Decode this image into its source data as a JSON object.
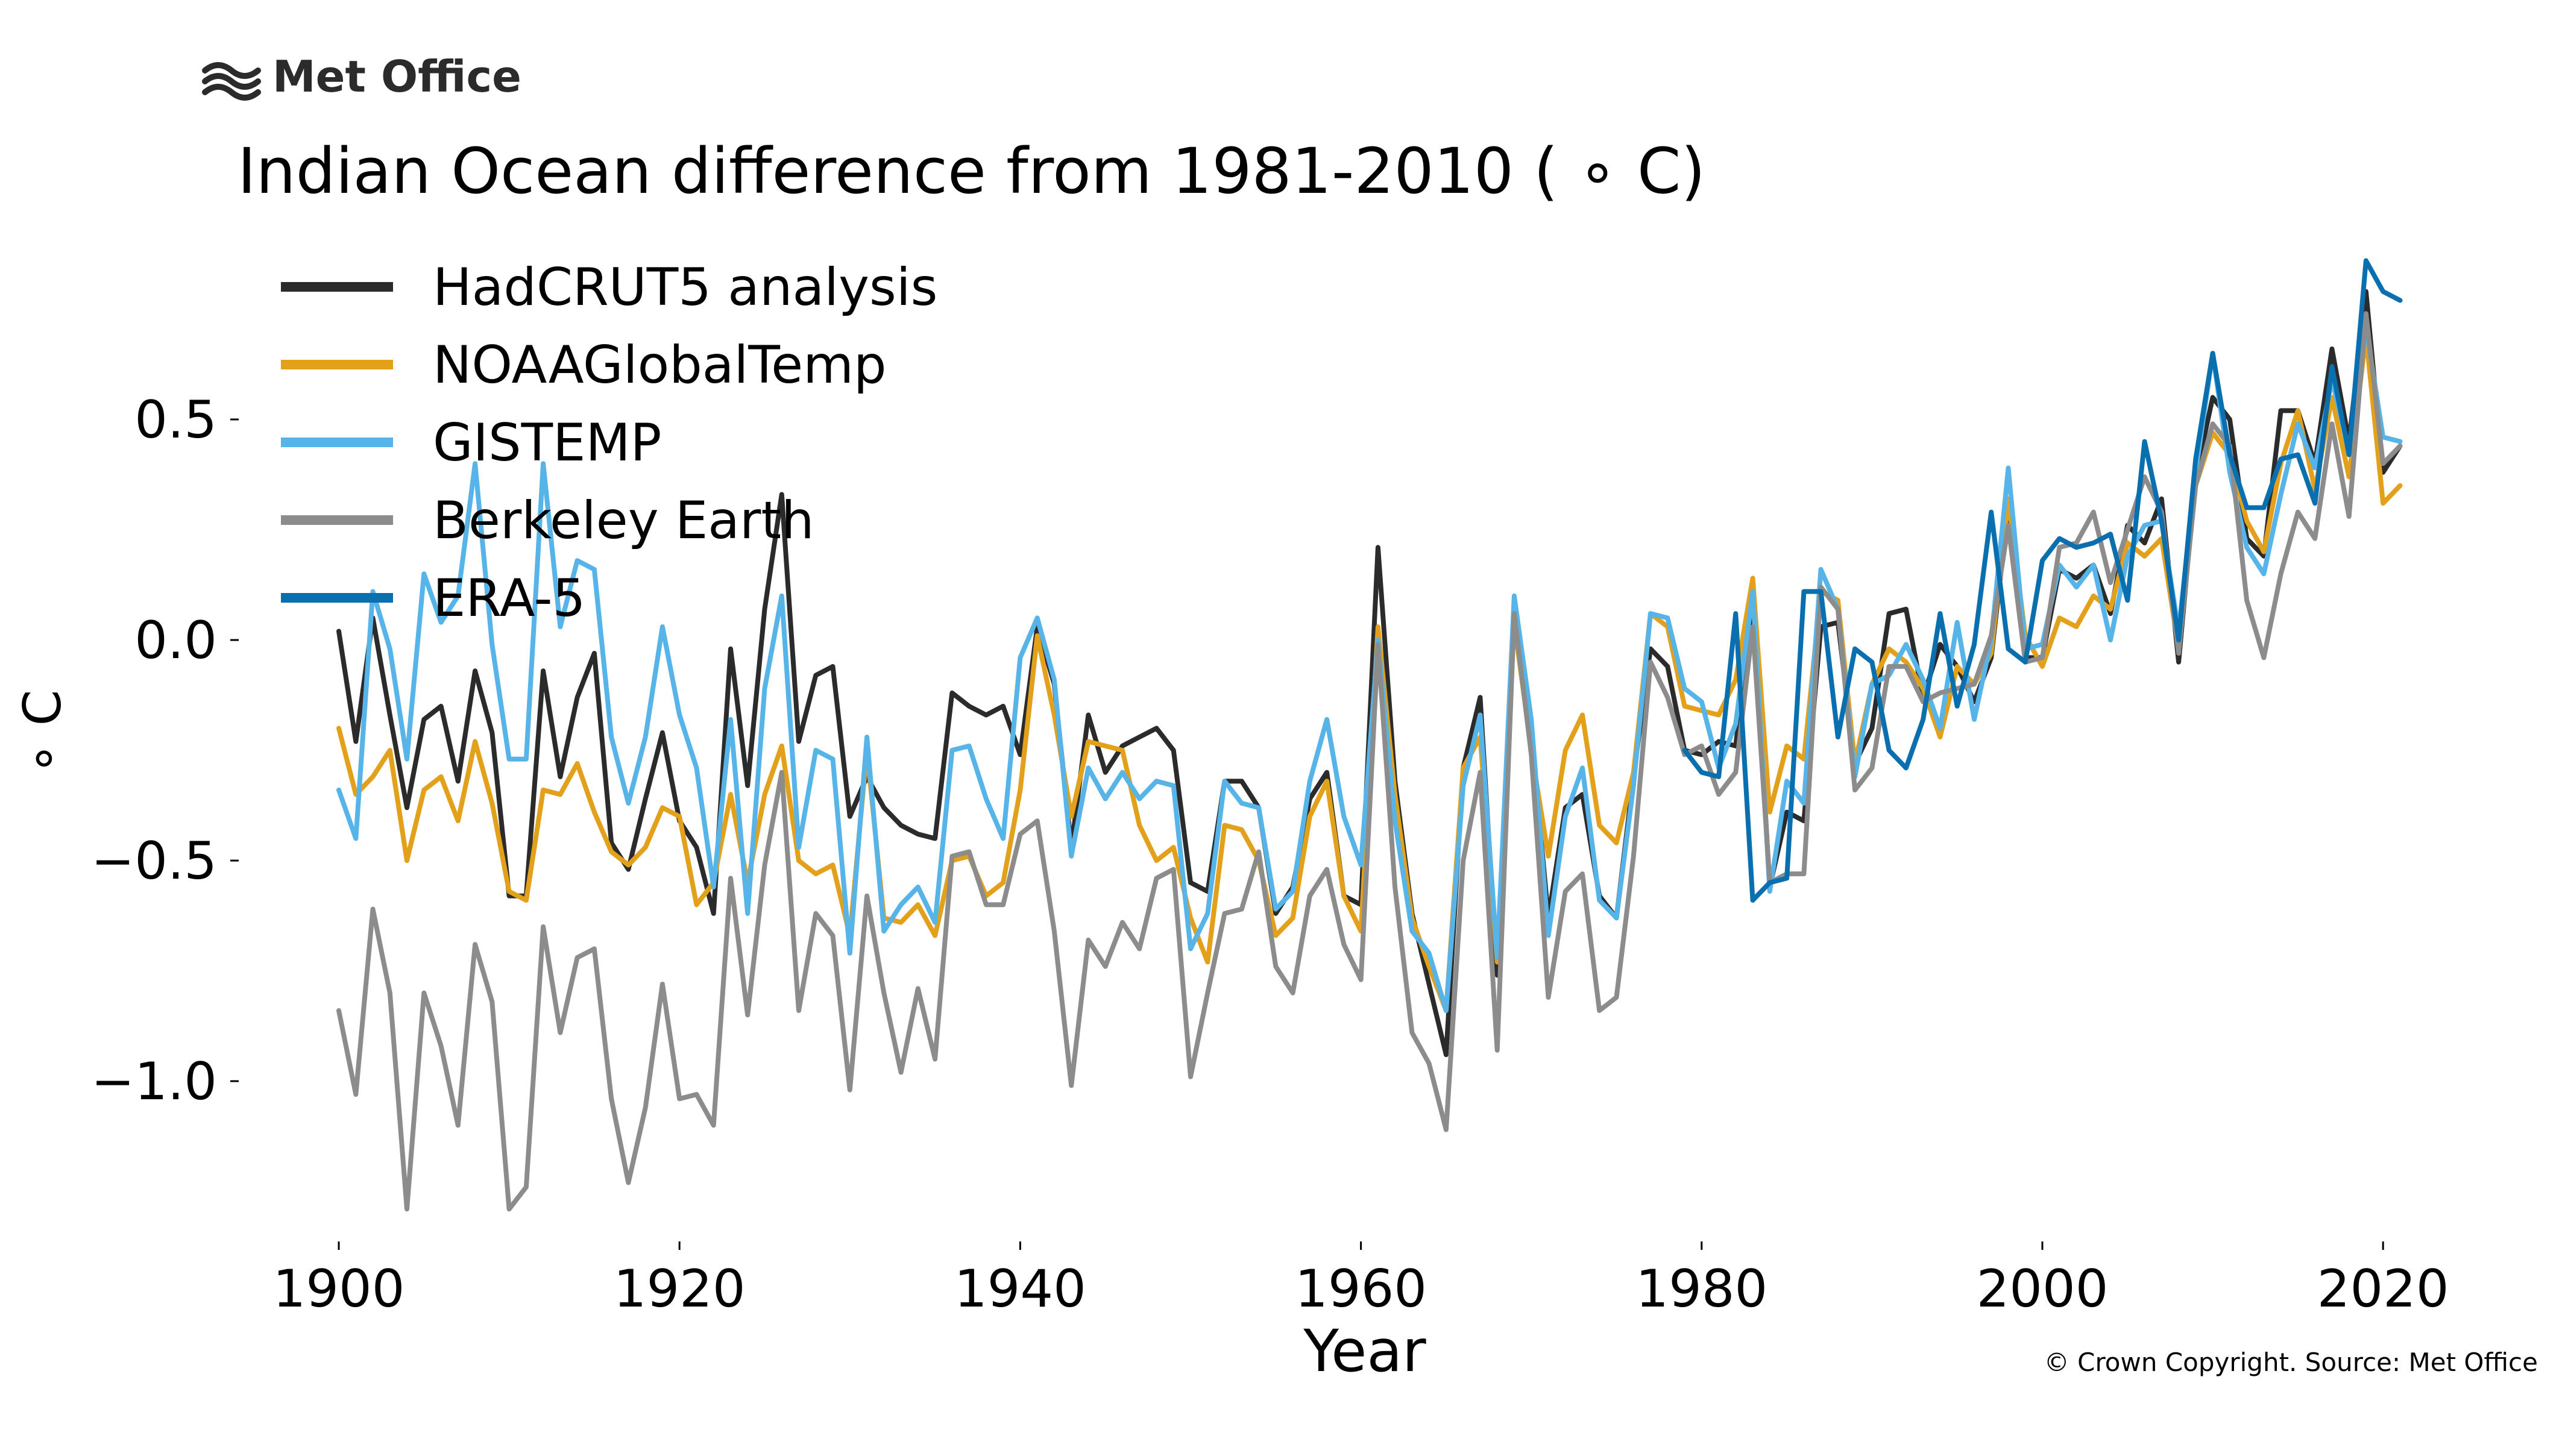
{
  "logo": {
    "text": "Met Office"
  },
  "copyright": "© Crown Copyright. Source: Met Office",
  "chart_data": {
    "type": "line",
    "title": "Indian Ocean difference from 1981-2010 ( ∘ C)",
    "xlabel": "Year",
    "ylabel": "∘ C",
    "xlim": [
      1896,
      2025
    ],
    "ylim": [
      -1.35,
      0.9
    ],
    "xticks": [
      1900,
      1920,
      1940,
      1960,
      1980,
      2000,
      2020
    ],
    "xtick_labels": [
      "1900",
      "1920",
      "1940",
      "1960",
      "1980",
      "2000",
      "2020"
    ],
    "yticks": [
      -1.0,
      -0.5,
      0.0,
      0.5
    ],
    "ytick_labels": [
      "−1.0",
      "−0.5",
      "0.0",
      "0.5"
    ],
    "grid": false,
    "legend_position": "top-left",
    "series": [
      {
        "name": "HadCRUT5 analysis",
        "color": "#2b2b2b",
        "x_start": 1900,
        "values": [
          0.02,
          -0.23,
          0.05,
          -0.17,
          -0.38,
          -0.18,
          -0.15,
          -0.32,
          -0.07,
          -0.21,
          -0.58,
          -0.58,
          -0.07,
          -0.31,
          -0.13,
          -0.03,
          -0.46,
          -0.52,
          -0.36,
          -0.21,
          -0.41,
          -0.47,
          -0.62,
          -0.02,
          -0.33,
          0.07,
          0.33,
          -0.23,
          -0.08,
          -0.06,
          -0.4,
          -0.31,
          -0.38,
          -0.42,
          -0.44,
          -0.45,
          -0.12,
          -0.15,
          -0.17,
          -0.15,
          -0.26,
          0.03,
          -0.1,
          -0.47,
          -0.17,
          -0.3,
          -0.24,
          -0.22,
          -0.2,
          -0.25,
          -0.55,
          -0.57,
          -0.32,
          -0.32,
          -0.38,
          -0.62,
          -0.56,
          -0.36,
          -0.3,
          -0.58,
          -0.6,
          0.21,
          -0.32,
          -0.62,
          -0.78,
          -0.94,
          -0.29,
          -0.13,
          -0.76,
          0.08,
          -0.21,
          -0.63,
          -0.38,
          -0.35,
          -0.58,
          -0.63,
          -0.31,
          -0.02,
          -0.06,
          -0.25,
          -0.26,
          -0.23,
          -0.24,
          0.1,
          -0.56,
          -0.39,
          -0.41,
          0.03,
          0.04,
          -0.28,
          -0.2,
          0.06,
          0.07,
          -0.13,
          -0.01,
          -0.06,
          -0.14,
          -0.04,
          0.3,
          -0.04,
          -0.04,
          0.16,
          0.14,
          0.17,
          0.06,
          0.26,
          0.22,
          0.32,
          -0.05,
          0.37,
          0.55,
          0.5,
          0.23,
          0.19,
          0.52,
          0.52,
          0.4,
          0.66,
          0.45,
          0.79,
          0.38,
          0.44
        ]
      },
      {
        "name": "NOAAGlobalTemp",
        "color": "#e3a01b",
        "x_start": 1900,
        "values": [
          -0.2,
          -0.35,
          -0.31,
          -0.25,
          -0.5,
          -0.34,
          -0.31,
          -0.41,
          -0.23,
          -0.37,
          -0.57,
          -0.59,
          -0.34,
          -0.35,
          -0.28,
          -0.39,
          -0.48,
          -0.51,
          -0.47,
          -0.38,
          -0.4,
          -0.6,
          -0.55,
          -0.35,
          -0.55,
          -0.35,
          -0.24,
          -0.5,
          -0.53,
          -0.51,
          -0.67,
          -0.25,
          -0.63,
          -0.64,
          -0.6,
          -0.67,
          -0.5,
          -0.49,
          -0.58,
          -0.55,
          -0.34,
          0.01,
          -0.17,
          -0.4,
          -0.23,
          -0.24,
          -0.25,
          -0.42,
          -0.5,
          -0.47,
          -0.63,
          -0.73,
          -0.42,
          -0.43,
          -0.5,
          -0.67,
          -0.63,
          -0.4,
          -0.32,
          -0.58,
          -0.66,
          0.03,
          -0.35,
          -0.63,
          -0.74,
          -0.84,
          -0.29,
          -0.22,
          -0.73,
          0.04,
          -0.25,
          -0.49,
          -0.25,
          -0.17,
          -0.42,
          -0.46,
          -0.3,
          0.06,
          0.03,
          -0.15,
          -0.16,
          -0.17,
          -0.09,
          0.14,
          -0.39,
          -0.24,
          -0.27,
          0.11,
          0.09,
          -0.28,
          -0.1,
          -0.02,
          -0.05,
          -0.11,
          -0.22,
          -0.06,
          -0.1,
          -0.03,
          0.32,
          0.01,
          -0.06,
          0.05,
          0.03,
          0.1,
          0.07,
          0.22,
          0.19,
          0.23,
          -0.02,
          0.35,
          0.47,
          0.42,
          0.27,
          0.2,
          0.4,
          0.52,
          0.34,
          0.55,
          0.37,
          0.69,
          0.31,
          0.35
        ]
      },
      {
        "name": "GISTEMP",
        "color": "#56b4e9",
        "x_start": 1900,
        "values": [
          -0.34,
          -0.45,
          0.11,
          -0.02,
          -0.27,
          0.15,
          0.04,
          0.1,
          0.4,
          -0.01,
          -0.27,
          -0.27,
          0.4,
          0.03,
          0.18,
          0.16,
          -0.22,
          -0.37,
          -0.22,
          0.03,
          -0.17,
          -0.29,
          -0.56,
          -0.18,
          -0.62,
          -0.11,
          0.1,
          -0.47,
          -0.25,
          -0.27,
          -0.71,
          -0.22,
          -0.66,
          -0.6,
          -0.56,
          -0.64,
          -0.25,
          -0.24,
          -0.36,
          -0.45,
          -0.04,
          0.05,
          -0.09,
          -0.49,
          -0.29,
          -0.36,
          -0.3,
          -0.36,
          -0.32,
          -0.33,
          -0.7,
          -0.62,
          -0.32,
          -0.37,
          -0.38,
          -0.61,
          -0.57,
          -0.32,
          -0.18,
          -0.4,
          -0.51,
          0.0,
          -0.41,
          -0.66,
          -0.71,
          -0.84,
          -0.33,
          -0.17,
          -0.72,
          0.1,
          -0.18,
          -0.67,
          -0.4,
          -0.29,
          -0.59,
          -0.63,
          -0.33,
          0.06,
          0.05,
          -0.11,
          -0.14,
          -0.29,
          -0.19,
          0.11,
          -0.57,
          -0.32,
          -0.37,
          0.16,
          0.07,
          -0.31,
          -0.1,
          -0.08,
          -0.01,
          -0.09,
          -0.2,
          0.04,
          -0.18,
          0.0,
          0.39,
          -0.02,
          -0.01,
          0.17,
          0.12,
          0.17,
          0.0,
          0.19,
          0.26,
          0.27,
          0.02,
          0.38,
          0.65,
          0.38,
          0.21,
          0.15,
          0.33,
          0.49,
          0.39,
          0.59,
          0.43,
          0.71,
          0.46,
          0.45
        ]
      },
      {
        "name": "Berkeley Earth",
        "color": "#8c8c8c",
        "x_start": 1900,
        "values": [
          -0.84,
          -1.03,
          -0.61,
          -0.8,
          -1.29,
          -0.8,
          -0.92,
          -1.1,
          -0.69,
          -0.82,
          -1.29,
          -1.24,
          -0.65,
          -0.89,
          -0.72,
          -0.7,
          -1.04,
          -1.23,
          -1.06,
          -0.78,
          -1.04,
          -1.03,
          -1.1,
          -0.54,
          -0.85,
          -0.51,
          -0.3,
          -0.84,
          -0.62,
          -0.67,
          -1.02,
          -0.58,
          -0.8,
          -0.98,
          -0.79,
          -0.95,
          -0.49,
          -0.48,
          -0.6,
          -0.6,
          -0.44,
          -0.41,
          -0.66,
          -1.01,
          -0.68,
          -0.74,
          -0.64,
          -0.7,
          -0.54,
          -0.52,
          -0.99,
          -0.8,
          -0.62,
          -0.61,
          -0.48,
          -0.74,
          -0.8,
          -0.58,
          -0.52,
          -0.69,
          -0.77,
          -0.01,
          -0.56,
          -0.89,
          -0.96,
          -1.11,
          -0.5,
          -0.3,
          -0.93,
          0.06,
          -0.26,
          -0.81,
          -0.57,
          -0.53,
          -0.84,
          -0.81,
          -0.49,
          -0.05,
          -0.13,
          -0.26,
          -0.24,
          -0.35,
          -0.3,
          0.03,
          -0.55,
          -0.53,
          -0.53,
          0.12,
          0.07,
          -0.34,
          -0.29,
          -0.06,
          -0.06,
          -0.14,
          -0.12,
          -0.11,
          -0.1,
          0.01,
          0.26,
          -0.05,
          -0.04,
          0.21,
          0.22,
          0.29,
          0.13,
          0.25,
          0.37,
          0.29,
          -0.03,
          0.35,
          0.49,
          0.44,
          0.09,
          -0.04,
          0.15,
          0.29,
          0.23,
          0.49,
          0.28,
          0.74,
          0.4,
          0.44
        ]
      },
      {
        "name": "ERA-5",
        "color": "#0a6fae",
        "x_start": 1979,
        "values": [
          -0.25,
          -0.3,
          -0.31,
          0.06,
          -0.59,
          -0.55,
          -0.54,
          0.11,
          0.11,
          -0.22,
          -0.02,
          -0.05,
          -0.25,
          -0.29,
          -0.18,
          0.06,
          -0.15,
          -0.01,
          0.29,
          -0.02,
          -0.05,
          0.18,
          0.23,
          0.21,
          0.22,
          0.24,
          0.09,
          0.45,
          0.27,
          0.0,
          0.41,
          0.65,
          0.42,
          0.3,
          0.3,
          0.41,
          0.42,
          0.31,
          0.62,
          0.42,
          0.86,
          0.79,
          0.77
        ]
      }
    ]
  }
}
